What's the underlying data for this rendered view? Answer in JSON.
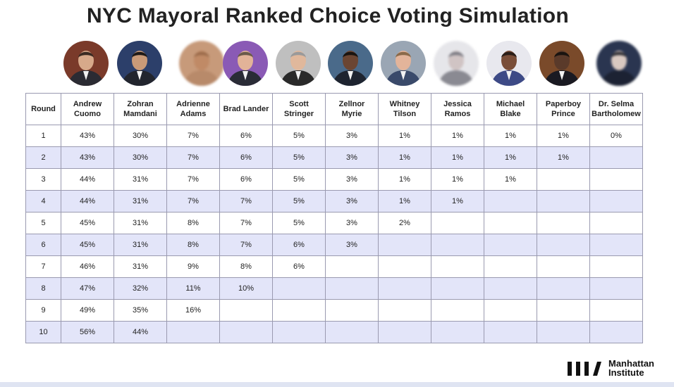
{
  "title": "NYC Mayoral Ranked Choice Voting Simulation",
  "logo": {
    "line1": "Manhattan",
    "line2": "Institute"
  },
  "chart_data": {
    "type": "table",
    "title": "NYC Mayoral Ranked Choice Voting Simulation",
    "row_header": "Round",
    "columns": [
      {
        "line1": "Andrew",
        "line2": "Cuomo"
      },
      {
        "line1": "Zohran",
        "line2": "Mamdani"
      },
      {
        "line1": "Adrienne",
        "line2": "Adams"
      },
      {
        "line1": "Brad Lander",
        "line2": ""
      },
      {
        "line1": "Scott",
        "line2": "Stringer"
      },
      {
        "line1": "Zellnor",
        "line2": "Myrie"
      },
      {
        "line1": "Whitney",
        "line2": "Tilson"
      },
      {
        "line1": "Jessica",
        "line2": "Ramos"
      },
      {
        "line1": "Michael",
        "line2": "Blake"
      },
      {
        "line1": "Paperboy",
        "line2": "Prince"
      },
      {
        "line1": "Dr. Selma",
        "line2": "Bartholomew"
      }
    ],
    "rows": [
      {
        "round": "1",
        "values": [
          "43%",
          "30%",
          "7%",
          "6%",
          "5%",
          "3%",
          "1%",
          "1%",
          "1%",
          "1%",
          "0%"
        ]
      },
      {
        "round": "2",
        "values": [
          "43%",
          "30%",
          "7%",
          "6%",
          "5%",
          "3%",
          "1%",
          "1%",
          "1%",
          "1%",
          ""
        ]
      },
      {
        "round": "3",
        "values": [
          "44%",
          "31%",
          "7%",
          "6%",
          "5%",
          "3%",
          "1%",
          "1%",
          "1%",
          "",
          ""
        ]
      },
      {
        "round": "4",
        "values": [
          "44%",
          "31%",
          "7%",
          "7%",
          "5%",
          "3%",
          "1%",
          "1%",
          "",
          "",
          ""
        ]
      },
      {
        "round": "5",
        "values": [
          "45%",
          "31%",
          "8%",
          "7%",
          "5%",
          "3%",
          "2%",
          "",
          "",
          "",
          ""
        ]
      },
      {
        "round": "6",
        "values": [
          "45%",
          "31%",
          "8%",
          "7%",
          "6%",
          "3%",
          "",
          "",
          "",
          "",
          ""
        ]
      },
      {
        "round": "7",
        "values": [
          "46%",
          "31%",
          "9%",
          "8%",
          "6%",
          "",
          "",
          "",
          "",
          "",
          ""
        ]
      },
      {
        "round": "8",
        "values": [
          "47%",
          "32%",
          "11%",
          "10%",
          "",
          "",
          "",
          "",
          "",
          "",
          ""
        ]
      },
      {
        "round": "9",
        "values": [
          "49%",
          "35%",
          "16%",
          "",
          "",
          "",
          "",
          "",
          "",
          "",
          ""
        ]
      },
      {
        "round": "10",
        "values": [
          "56%",
          "44%",
          "",
          "",
          "",
          "",
          "",
          "",
          "",
          "",
          ""
        ]
      }
    ]
  },
  "colors": {
    "shaded_row": "#e3e5f9",
    "border": "#9a9ab0",
    "title": "#222222"
  },
  "avatars": [
    {
      "icon": "portrait-icon",
      "bg": "#7a3a2a",
      "suit": "#2b2b33",
      "skin": "#d7a98a",
      "hair": "#3a2a22"
    },
    {
      "icon": "portrait-icon",
      "bg": "#2c3f6a",
      "suit": "#22252e",
      "skin": "#c99a78",
      "hair": "#1f1a17"
    },
    {
      "icon": "blurred-portrait-icon",
      "bg": "#c79a7a",
      "suit": "#b88a6a",
      "skin": "#c08a66",
      "hair": "#9a6a4a"
    },
    {
      "icon": "portrait-icon",
      "bg": "#8a5ab5",
      "suit": "#2a2c36",
      "skin": "#e2b398",
      "hair": "#6a5a4a"
    },
    {
      "icon": "portrait-icon",
      "bg": "#bfbfbf",
      "suit": "#2a2a2a",
      "skin": "#e0b89c",
      "hair": "#9a9a9a"
    },
    {
      "icon": "portrait-icon",
      "bg": "#4a6a8a",
      "suit": "#1e2430",
      "skin": "#6b4532",
      "hair": "#1a1410"
    },
    {
      "icon": "portrait-icon",
      "bg": "#9aa6b4",
      "suit": "#3a4a6a",
      "skin": "#e3b49a",
      "hair": "#8a6a4a"
    },
    {
      "icon": "blurred-portrait-icon",
      "bg": "#e6e6ea",
      "suit": "#8a8a92",
      "skin": "#d0c4c4",
      "hair": "#7a7a82"
    },
    {
      "icon": "portrait-icon",
      "bg": "#e8e8ee",
      "suit": "#3d4a86",
      "skin": "#7a4e38",
      "hair": "#2a1e18"
    },
    {
      "icon": "portrait-icon",
      "bg": "#7a4a2a",
      "suit": "#1a1a22",
      "skin": "#5a3a2a",
      "hair": "#1a1410"
    },
    {
      "icon": "blurred-portrait-icon",
      "bg": "#2a3550",
      "suit": "#1c2233",
      "skin": "#d8c8c0",
      "hair": "#2a2a30"
    }
  ]
}
